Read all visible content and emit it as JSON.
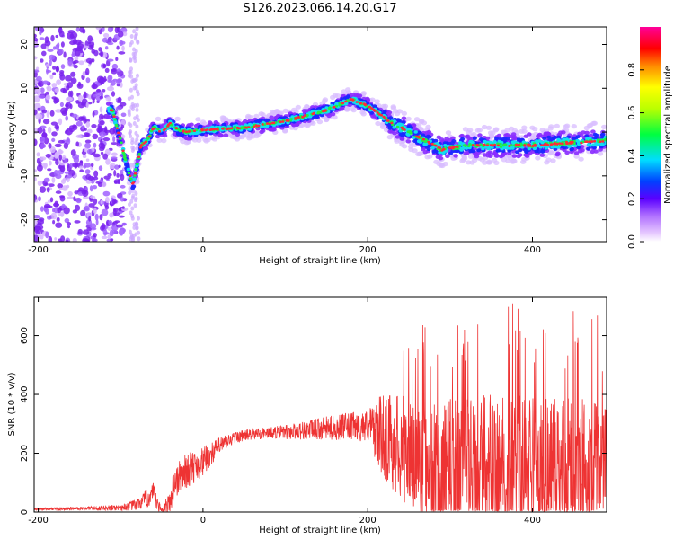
{
  "title": "S126.2023.066.14.20.G17",
  "colors": {
    "snr_line": "#ee3333",
    "ridge_core": "#ff2a3a",
    "axis": "#000000"
  },
  "colorbar_label": "Normalized spectral amplitude",
  "chart_data": [
    {
      "type": "heatmap",
      "title": "S126.2023.066.14.20.G17",
      "xlabel": "Height of straight line (km)",
      "ylabel": "Frequency (Hz)",
      "xlim": [
        -205,
        490
      ],
      "ylim": [
        -25,
        24
      ],
      "x_ticks": [
        -200,
        0,
        200,
        400
      ],
      "y_ticks": [
        -20,
        -10,
        0,
        10,
        20
      ],
      "colorscale": "rainbow (violet→blue→cyan→green→yellow→red→magenta)",
      "colorbar": {
        "label": "Normalized spectral amplitude",
        "range": [
          0.0,
          1.0
        ],
        "ticks": [
          0.0,
          0.2,
          0.4,
          0.6,
          0.8
        ]
      },
      "ridge": {
        "x": [
          -110,
          -100,
          -92,
          -85,
          -75,
          -68,
          -60,
          -50,
          -40,
          -30,
          -20,
          0,
          50,
          100,
          150,
          180,
          200,
          230,
          260,
          290,
          320,
          360,
          400,
          440,
          490
        ],
        "y": [
          5,
          -2,
          -8,
          -12,
          -3,
          -2,
          1,
          0,
          2,
          0.5,
          0,
          0.5,
          1,
          2.5,
          5,
          7.5,
          6,
          2,
          -1,
          -4,
          -3,
          -3,
          -3,
          -2.5,
          -2
        ]
      }
    },
    {
      "type": "line",
      "xlabel": "Height of straight line (km)",
      "ylabel": "SNR (10 * v/v)",
      "xlim": [
        -205,
        490
      ],
      "ylim": [
        0,
        730
      ],
      "x_ticks": [
        -200,
        0,
        200,
        400
      ],
      "y_ticks": [
        0,
        200,
        400,
        600
      ],
      "envelope": {
        "x": [
          -205,
          -150,
          -100,
          -80,
          -60,
          -55,
          -50,
          -40,
          -35,
          -20,
          0,
          20,
          40,
          60,
          80,
          100,
          150,
          200,
          220,
          250,
          280,
          300,
          350,
          400,
          450,
          490
        ],
        "base": [
          10,
          12,
          15,
          25,
          60,
          20,
          5,
          30,
          100,
          140,
          170,
          225,
          255,
          265,
          270,
          272,
          285,
          295,
          260,
          200,
          160,
          150,
          140,
          150,
          160,
          170
        ],
        "amplitude": [
          4,
          6,
          10,
          20,
          40,
          25,
          15,
          40,
          60,
          60,
          50,
          30,
          20,
          20,
          20,
          25,
          40,
          55,
          150,
          200,
          230,
          240,
          260,
          250,
          230,
          220
        ]
      }
    }
  ]
}
